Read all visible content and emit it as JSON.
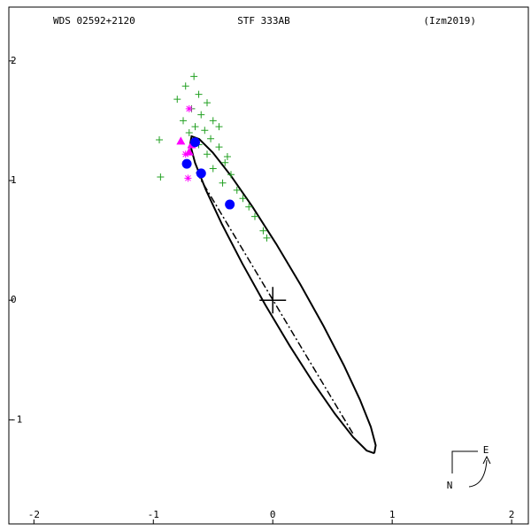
{
  "chart_data": {
    "type": "orbit",
    "titles": [
      "WDS 02592+2120",
      "STF 333AB",
      "(Izm2019)"
    ],
    "compass": {
      "east": "E",
      "north": "N"
    },
    "xlim": [
      -2.21,
      2.14
    ],
    "ylim": [
      -1.87,
      2.45
    ],
    "xticks": [
      -2,
      -1,
      0,
      1,
      2
    ],
    "yticks": [
      -1,
      0,
      1,
      2
    ],
    "series": [
      {
        "style": "line",
        "color": "#000000",
        "x": [
          0.85,
          0.862,
          0.821,
          0.73,
          0.595,
          0.425,
          0.232,
          0.029,
          -0.171,
          -0.352,
          -0.503,
          -0.616,
          -0.68,
          -0.692,
          -0.651,
          -0.56,
          -0.425,
          -0.255,
          -0.062,
          0.141,
          0.341,
          0.522,
          0.673,
          0.786,
          0.85
        ],
        "y": [
          -1.28,
          -1.213,
          -1.059,
          -0.832,
          -0.544,
          -0.216,
          0.13,
          0.47,
          0.782,
          1.042,
          1.235,
          1.347,
          1.37,
          1.303,
          1.149,
          0.922,
          0.634,
          0.306,
          -0.04,
          -0.38,
          -0.692,
          -0.952,
          -1.145,
          -1.257,
          -1.28
        ]
      },
      {
        "style": "dashdot",
        "color": "#000000",
        "x": [
          -0.64,
          0.68
        ],
        "y": [
          1.07,
          -1.13
        ]
      },
      {
        "style": "plus",
        "color": "#22a022",
        "x": [
          -0.66,
          -0.73,
          -0.62,
          -0.8,
          -0.55,
          -0.68,
          -0.6,
          -0.75,
          -0.5,
          -0.65,
          -0.57,
          -0.7,
          -0.52,
          -0.62,
          -0.45,
          -0.55,
          -0.4,
          -0.5,
          -0.35,
          -0.42,
          -0.3,
          -0.25,
          -0.2,
          -0.15,
          -0.08,
          -0.05,
          -0.95,
          -0.94,
          -0.45,
          -0.38
        ],
        "y": [
          1.87,
          1.79,
          1.72,
          1.68,
          1.65,
          1.6,
          1.55,
          1.5,
          1.5,
          1.45,
          1.42,
          1.4,
          1.35,
          1.3,
          1.28,
          1.22,
          1.15,
          1.1,
          1.05,
          0.98,
          0.92,
          0.85,
          0.78,
          0.7,
          0.58,
          0.52,
          1.34,
          1.03,
          1.45,
          1.2
        ]
      },
      {
        "style": "triangle",
        "color": "#ff00ff",
        "x": [
          -0.77,
          -0.68,
          -0.7
        ],
        "y": [
          1.33,
          1.3,
          1.24
        ]
      },
      {
        "style": "star",
        "color": "#ff00ff",
        "x": [
          -0.7,
          -0.71,
          -0.73
        ],
        "y": [
          1.6,
          1.02,
          1.22
        ]
      },
      {
        "style": "circle",
        "color": "#0000ff",
        "x": [
          -0.72,
          -0.6,
          -0.36,
          -0.65
        ],
        "y": [
          1.14,
          1.06,
          0.8,
          1.32
        ]
      }
    ]
  }
}
